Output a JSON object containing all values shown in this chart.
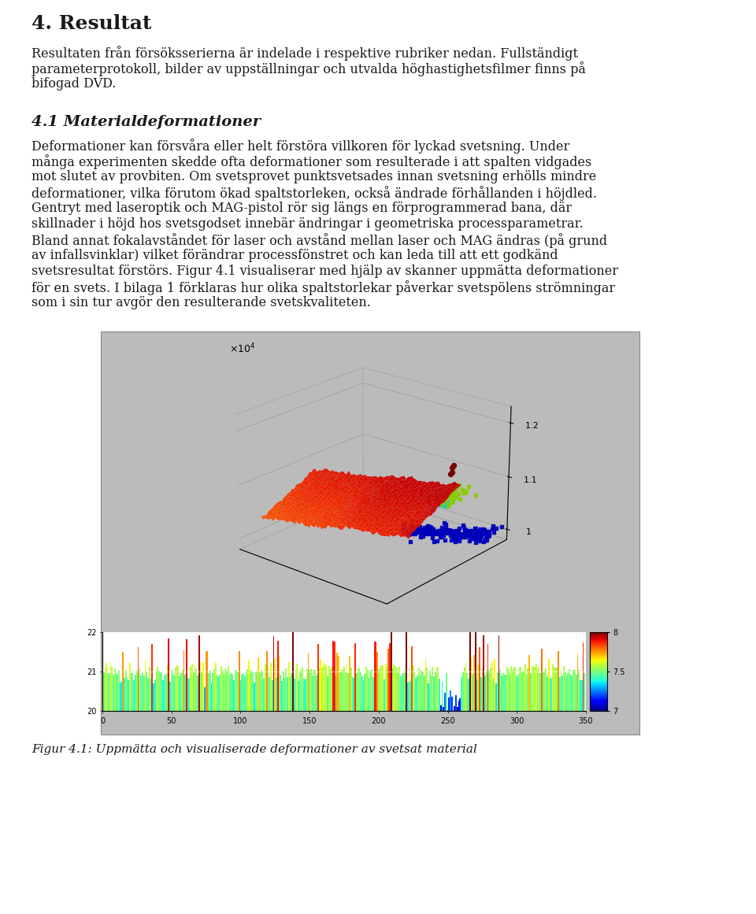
{
  "title": "4. Resultat",
  "para1": "Resultaten från försöksserierna är indelade i respektive rubriker nedan. Fullständigt parameterprotokoll, bilder av uppställningar och utvalda höghastighetsfilmer finns på bifogad DVD.",
  "section_title": "4.1 Materialdeformationer",
  "section_para": "Deformationer kan försvåra eller helt förstöra villkoren för lyckad svetsning. Under många experimenten skedde ofta deformationer som resulterade i att spalten vidgades mot slutet av provbiten. Om svetsprovet punktsvetsades innan svetsning erhölls mindre deformationer, vilka förutom ökad spaltstorleken, också ändrade förhållanden i höjdled. Gentryt med laseroptik och MAG-pistol rör sig längs en förprogrammerad bana, där skillnader i höjd hos svetsgodset innebär ändringar i geometriska processparametrar. Bland annat fokalavståndet för laser och avstånd mellan laser och MAG ändras (på grund av infallsvinklar) vilket förändrar processefönstret och kan leda till att ett godkänd svetsresultat förstörs. Figur 4.1 visualiserar med hjälp av skanner uppmätta deformationer för en svets. I bilaga 1 förklaras hur olika spaltstorlekar påverkar svetspölens strömningar som i sin tur avgör den resulterande svetskvaliteten.",
  "figure_caption": "Figur 4.1: Uppmätta och visualiserade deformationer av svetsat material",
  "background_color": "#ffffff",
  "text_color": "#1a1a1a",
  "plot_bg": "#bbbbbb",
  "title_fontsize": 18,
  "body_fontsize": 11.5,
  "section_fontsize": 14
}
